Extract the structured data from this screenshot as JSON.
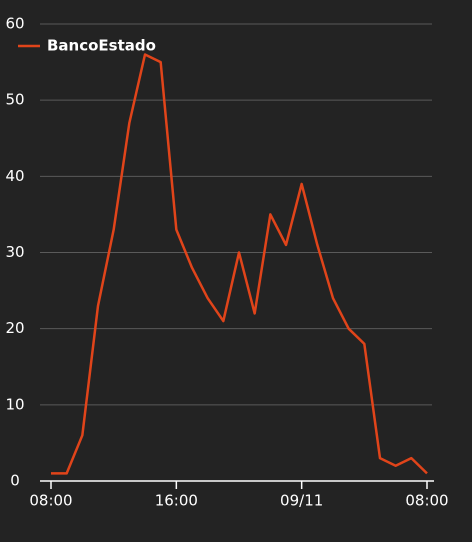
{
  "chart_data": {
    "type": "line",
    "categories": [
      "08:00",
      null,
      null,
      null,
      null,
      null,
      null,
      null,
      "16:00",
      null,
      null,
      null,
      null,
      null,
      null,
      null,
      "09/11",
      null,
      null,
      null,
      null,
      null,
      null,
      null,
      "08:00"
    ],
    "series": [
      {
        "name": "BancoEstado",
        "color": "#e0441a",
        "values": [
          1,
          1,
          6,
          23,
          33,
          47,
          56,
          55,
          33,
          28,
          24,
          21,
          30,
          22,
          35,
          31,
          39,
          31,
          24,
          20,
          18,
          3,
          2,
          3,
          1
        ]
      }
    ],
    "ylim": [
      0,
      60
    ],
    "yticks": [
      0,
      10,
      20,
      30,
      40,
      50,
      60
    ],
    "grid": true,
    "legend": "top-left"
  }
}
